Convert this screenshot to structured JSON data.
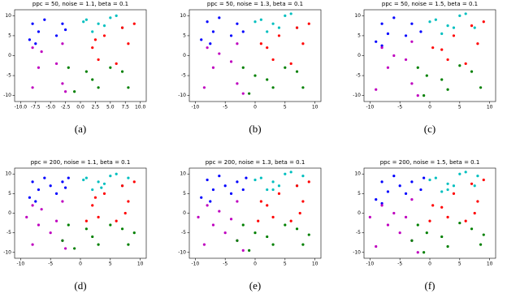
{
  "chart_data": [
    {
      "type": "scatter",
      "title": "ppc = 50, noise = 1.1, beta = 0.1",
      "caption": "(a)",
      "xlim": [
        -11,
        11
      ],
      "ylim": [
        -11.5,
        11.5
      ],
      "xticks": [
        {
          "value": -10,
          "label": "-10.0"
        },
        {
          "value": -7.5,
          "label": "-7.5"
        },
        {
          "value": -5,
          "label": "-5.0"
        },
        {
          "value": -2.5,
          "label": "-2.5"
        },
        {
          "value": 0,
          "label": "0.0"
        },
        {
          "value": 2.5,
          "label": "2.5"
        },
        {
          "value": 5,
          "label": "5.0"
        },
        {
          "value": 7.5,
          "label": "7.5"
        },
        {
          "value": 10,
          "label": "10.0"
        }
      ],
      "yticks": [
        -10,
        -5,
        0,
        5,
        10
      ],
      "series": [
        {
          "color": "#0000ff",
          "x": [
            -8,
            -7,
            -3,
            -4,
            -8.5,
            -2.5,
            -6,
            -7.5
          ],
          "values": [
            8,
            6,
            8,
            5,
            4,
            6.5,
            9,
            3
          ]
        },
        {
          "color": "#00bfbf",
          "x": [
            1,
            3,
            5,
            7,
            2,
            6,
            4,
            0.5
          ],
          "values": [
            9,
            8,
            9.5,
            7,
            6,
            10,
            7.5,
            8.5
          ]
        },
        {
          "color": "#bf00bf",
          "x": [
            -8,
            -3,
            -7,
            -4,
            -8,
            -3,
            -6.5,
            -2.5
          ],
          "values": [
            2,
            3,
            -3,
            -2,
            -8,
            -7,
            1,
            -9
          ]
        },
        {
          "color": "#ff0000",
          "x": [
            2,
            3,
            7,
            8,
            6,
            4,
            9,
            2.5
          ],
          "values": [
            2,
            -1,
            7,
            3,
            -2,
            5,
            8,
            4
          ]
        },
        {
          "color": "#008000",
          "x": [
            -2,
            3,
            7,
            2,
            8,
            -1,
            5,
            1
          ],
          "values": [
            -3,
            -8,
            -4,
            -6,
            -8,
            -9,
            -3,
            -4
          ]
        }
      ]
    },
    {
      "type": "scatter",
      "title": "ppc = 50, noise = 1.3, beta = 0.1",
      "caption": "(b)",
      "xlim": [
        -11,
        11
      ],
      "ylim": [
        -11.5,
        11.5
      ],
      "xticks": [
        -10,
        -5,
        0,
        5,
        10
      ],
      "yticks": [
        -10,
        -5,
        0,
        5,
        10
      ],
      "series": [
        {
          "color": "#0000ff",
          "x": [
            -8,
            -7,
            -3,
            -4,
            -9,
            -2,
            -6,
            -7.5
          ],
          "values": [
            8.5,
            6,
            8,
            5,
            4,
            6,
            9.5,
            3
          ]
        },
        {
          "color": "#00bfbf",
          "x": [
            1,
            3,
            5,
            7,
            2,
            6,
            0,
            4
          ],
          "values": [
            9,
            8,
            10,
            7,
            6,
            10.5,
            8.5,
            7
          ]
        },
        {
          "color": "#bf00bf",
          "x": [
            -8,
            -3,
            -7,
            -4,
            -8.5,
            -3,
            -6,
            -2
          ],
          "values": [
            2,
            3,
            -3,
            -1.5,
            -8,
            -7,
            0.5,
            -9.5
          ]
        },
        {
          "color": "#ff0000",
          "x": [
            2,
            3,
            7,
            8,
            6,
            4,
            9,
            1
          ],
          "values": [
            2,
            -1,
            7,
            3,
            -2,
            5,
            8,
            3
          ]
        },
        {
          "color": "#008000",
          "x": [
            -2,
            3,
            7,
            2,
            8,
            -1,
            5,
            0
          ],
          "values": [
            -3,
            -8,
            -4,
            -6,
            -8,
            -9.5,
            -3,
            -5
          ]
        }
      ]
    },
    {
      "type": "scatter",
      "title": "ppc = 50, noise = 1.5, beta = 0.1",
      "caption": "(c)",
      "xlim": [
        -11,
        11
      ],
      "ylim": [
        -11.5,
        11.5
      ],
      "xticks": [
        -10,
        -5,
        0,
        5,
        10
      ],
      "yticks": [
        -10,
        -5,
        0,
        5,
        10
      ],
      "series": [
        {
          "color": "#0000ff",
          "x": [
            -8,
            -7,
            -3,
            -4,
            -9,
            -1.5,
            -6,
            -8
          ],
          "values": [
            8,
            5.5,
            8,
            5,
            3.5,
            6,
            9.5,
            2.5
          ]
        },
        {
          "color": "#00bfbf",
          "x": [
            1,
            3,
            5,
            7.5,
            2,
            6,
            0,
            4
          ],
          "values": [
            9,
            7.5,
            10,
            7,
            5.5,
            10.5,
            8.5,
            7
          ]
        },
        {
          "color": "#bf00bf",
          "x": [
            -8,
            -3,
            -7,
            -4,
            -9,
            -3,
            -6,
            -2
          ],
          "values": [
            2,
            3.5,
            -3,
            -1,
            -8.5,
            -7,
            0,
            -10
          ]
        },
        {
          "color": "#ff0000",
          "x": [
            2,
            3,
            7,
            8,
            6,
            4,
            9,
            0.5
          ],
          "values": [
            1.5,
            -1,
            7.5,
            3,
            -2,
            5,
            8.5,
            2
          ]
        },
        {
          "color": "#008000",
          "x": [
            -2,
            3,
            7,
            2,
            8.5,
            -1,
            5,
            -0.5
          ],
          "values": [
            -3,
            -8.5,
            -4,
            -6,
            -8,
            -10,
            -2.5,
            -5
          ]
        }
      ]
    },
    {
      "type": "scatter",
      "title": "ppc = 200, noise = 1.1, beta = 0.1",
      "caption": "(d)",
      "xlim": [
        -11,
        11
      ],
      "ylim": [
        -11.5,
        11.5
      ],
      "xticks": [
        -10,
        -5,
        0,
        5,
        10
      ],
      "yticks": [
        -10,
        -5,
        0,
        5,
        10
      ],
      "series": [
        {
          "color": "#0000ff",
          "x": [
            -8,
            -7,
            -3,
            -4,
            -8.5,
            -2.5,
            -6,
            -7.5,
            -5,
            -2
          ],
          "values": [
            8,
            6,
            8,
            5,
            4,
            6.5,
            9,
            3,
            7,
            9
          ]
        },
        {
          "color": "#00bfbf",
          "x": [
            1,
            3,
            5,
            7,
            2,
            6,
            4,
            0.5,
            8,
            3.5
          ],
          "values": [
            9,
            8,
            9.5,
            7,
            6,
            10,
            7.5,
            8.5,
            9,
            6.5
          ]
        },
        {
          "color": "#bf00bf",
          "x": [
            -8,
            -3,
            -7,
            -4,
            -8,
            -3,
            -6.5,
            -2.5,
            -9,
            -5
          ],
          "values": [
            2,
            3,
            -3,
            -2,
            -8,
            -7,
            1,
            -9,
            -1,
            -5
          ]
        },
        {
          "color": "#ff0000",
          "x": [
            2,
            3,
            7,
            8,
            6,
            4,
            9,
            2.5,
            7.5,
            1
          ],
          "values": [
            2,
            -1,
            7,
            3,
            -2,
            5,
            8,
            4,
            0,
            -2
          ]
        },
        {
          "color": "#008000",
          "x": [
            -2,
            3,
            7,
            2,
            8,
            -1,
            5,
            1,
            9,
            -3
          ],
          "values": [
            -3,
            -8,
            -4,
            -6,
            -8,
            -9,
            -3,
            -4,
            -5,
            -7
          ]
        }
      ]
    },
    {
      "type": "scatter",
      "title": "ppc = 200, noise = 1.3, beta = 0.1",
      "caption": "(e)",
      "xlim": [
        -11,
        11
      ],
      "ylim": [
        -11.5,
        11.5
      ],
      "xticks": [
        -10,
        -5,
        0,
        5,
        10
      ],
      "yticks": [
        -10,
        -5,
        0,
        5,
        10
      ],
      "series": [
        {
          "color": "#0000ff",
          "x": [
            -8,
            -7,
            -3,
            -4,
            -9,
            -2,
            -6,
            -7.5,
            -5,
            -1.5
          ],
          "values": [
            8.5,
            6,
            8,
            5,
            4,
            6,
            9.5,
            3,
            7,
            9
          ]
        },
        {
          "color": "#00bfbf",
          "x": [
            1,
            3,
            5,
            7,
            2,
            6,
            0,
            4,
            8,
            3
          ],
          "values": [
            9,
            8,
            10,
            7,
            6,
            10.5,
            8.5,
            7,
            9.5,
            6
          ]
        },
        {
          "color": "#bf00bf",
          "x": [
            -8,
            -3,
            -7,
            -4,
            -8.5,
            -3,
            -6,
            -2,
            -9.5,
            -5
          ],
          "values": [
            2,
            3,
            -3,
            -1.5,
            -8,
            -7,
            0.5,
            -9.5,
            -1,
            -5
          ]
        },
        {
          "color": "#ff0000",
          "x": [
            2,
            3,
            7,
            8,
            6,
            4,
            9,
            1,
            7.5,
            0.5
          ],
          "values": [
            2,
            -1,
            7,
            3,
            -2,
            5,
            8,
            3,
            0,
            -2
          ]
        },
        {
          "color": "#008000",
          "x": [
            -2,
            3,
            7,
            2,
            8,
            -1,
            5,
            0,
            9,
            -3
          ],
          "values": [
            -3,
            -8,
            -4,
            -6,
            -8,
            -9.5,
            -3,
            -5,
            -5.5,
            -7
          ]
        }
      ]
    },
    {
      "type": "scatter",
      "title": "ppc = 200, noise = 1.5, beta = 0.1",
      "caption": "(f)",
      "xlim": [
        -11,
        11
      ],
      "ylim": [
        -11.5,
        11.5
      ],
      "xticks": [
        -10,
        -5,
        0,
        5,
        10
      ],
      "yticks": [
        -10,
        -5,
        0,
        5,
        10
      ],
      "series": [
        {
          "color": "#0000ff",
          "x": [
            -8,
            -7,
            -3,
            -4,
            -9,
            -1.5,
            -6,
            -8,
            -5,
            -1
          ],
          "values": [
            8,
            5.5,
            8,
            5,
            3.5,
            6,
            9.5,
            2.5,
            7,
            9
          ]
        },
        {
          "color": "#00bfbf",
          "x": [
            1,
            3,
            5,
            7.5,
            2,
            6,
            0,
            4,
            8,
            3
          ],
          "values": [
            9,
            7.5,
            10,
            7,
            5.5,
            10.5,
            8.5,
            7,
            9.5,
            6
          ]
        },
        {
          "color": "#bf00bf",
          "x": [
            -8,
            -3,
            -7,
            -4,
            -9,
            -3,
            -6,
            -2,
            -10,
            -5
          ],
          "values": [
            2,
            3.5,
            -3,
            -1,
            -8.5,
            -7,
            0,
            -10,
            -1,
            -5
          ]
        },
        {
          "color": "#ff0000",
          "x": [
            2,
            3,
            7,
            8,
            6,
            4,
            9,
            0.5,
            7.5,
            0
          ],
          "values": [
            1.5,
            -1,
            7.5,
            3,
            -2,
            5,
            8.5,
            2,
            0,
            -2
          ]
        },
        {
          "color": "#008000",
          "x": [
            -2,
            3,
            7,
            2,
            8.5,
            -1,
            5,
            -0.5,
            9,
            -3
          ],
          "values": [
            -3,
            -8.5,
            -4,
            -6,
            -8,
            -10,
            -2.5,
            -5,
            -5.5,
            -7
          ]
        }
      ]
    }
  ]
}
